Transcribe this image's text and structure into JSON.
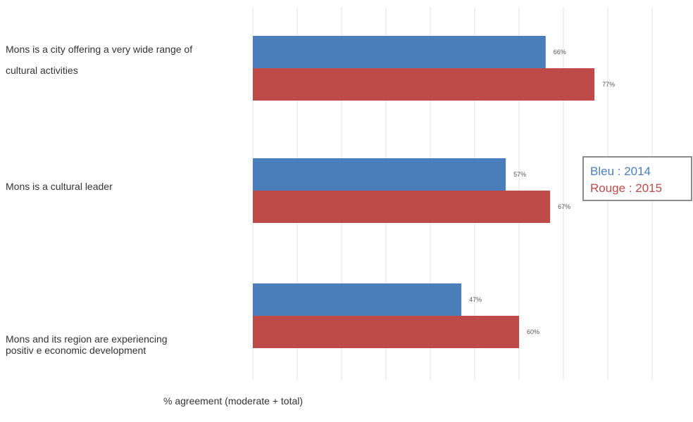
{
  "chart_data": {
    "type": "bar",
    "orientation": "horizontal",
    "categories": [
      "Mons is a city offering a very wide range of cultural activities",
      "Mons is a cultural leader",
      "Mons and its region are experiencing positiv e economic development"
    ],
    "category_lines": [
      [
        "Mons is a city offering a very wide range of",
        "cultural activities"
      ],
      [
        "Mons is a cultural leader"
      ],
      [
        "Mons and its region are experiencing",
        "positiv e economic development"
      ]
    ],
    "series": [
      {
        "name": "Bleu : 2014",
        "color": "#4a7ebb",
        "values": [
          66,
          57,
          47
        ],
        "labels": [
          "66%",
          "57%",
          "47%"
        ]
      },
      {
        "name": "Rouge : 2015",
        "color": "#be4b48",
        "values": [
          77,
          67,
          60
        ],
        "labels": [
          "77%",
          "67%",
          "60%"
        ]
      }
    ],
    "xlabel": "% agreement (moderate + total)",
    "xlim": [
      0,
      100
    ],
    "grid": true,
    "legend": {
      "placement": "right",
      "lines": [
        "Bleu : 2014",
        "Rouge : 2015"
      ],
      "colors": [
        "#4a7ebb",
        "#be4b48"
      ],
      "border": "#8c8c8c"
    }
  }
}
